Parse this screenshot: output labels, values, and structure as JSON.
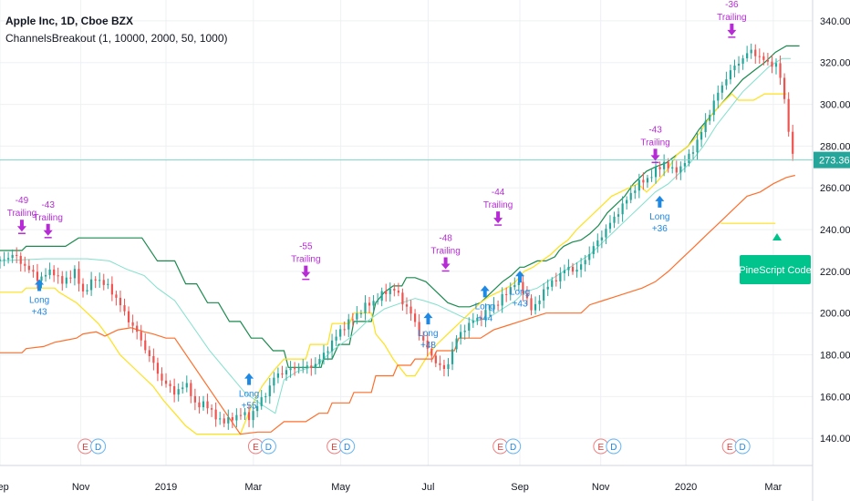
{
  "header": {
    "symbol": "Apple Inc, 1D, Cboe BZX",
    "indicator": "ChannelsBreakout (1, 10000, 2000, 50, 1000)"
  },
  "colors": {
    "up": "#26a69a",
    "down": "#ef5350",
    "upper_channel": "#1b8a4f",
    "lower_channel": "#ffe11a",
    "trailing": "#ff6f2c",
    "mid": "#80e0cc",
    "signal_long": "#1e88e5",
    "signal_exit": "#b72bd6",
    "badge": "#00c48c",
    "price_line": "#7fd4c8"
  },
  "chart_data": {
    "type": "candlestick",
    "title": "Apple Inc, 1D, Cboe BZX",
    "x_ticks": [
      "Sep",
      "Nov",
      "2019",
      "Mar",
      "May",
      "Jul",
      "Sep",
      "Nov",
      "2020",
      "Mar"
    ],
    "y_ticks": [
      "140.00",
      "160.00",
      "180.00",
      "200.00",
      "220.00",
      "240.00",
      "260.00",
      "280.00",
      "300.00",
      "320.00",
      "340.00"
    ],
    "ylim": [
      127,
      350
    ],
    "last_price": "273.36",
    "grid": true,
    "events_label": [
      "E",
      "D"
    ],
    "series": [
      {
        "name": "Upper channel",
        "values": [
          [
            0,
            230
          ],
          [
            10,
            230
          ],
          [
            12,
            232
          ],
          [
            30,
            232
          ],
          [
            36,
            236
          ],
          [
            60,
            236
          ],
          [
            65,
            236
          ],
          [
            72,
            225
          ],
          [
            80,
            225
          ],
          [
            85,
            214
          ],
          [
            90,
            214
          ],
          [
            95,
            205
          ],
          [
            100,
            205
          ],
          [
            105,
            196
          ],
          [
            110,
            196
          ],
          [
            115,
            188
          ],
          [
            120,
            188
          ],
          [
            125,
            182
          ],
          [
            130,
            182
          ],
          [
            132,
            174
          ],
          [
            140,
            174
          ],
          [
            145,
            174
          ],
          [
            147,
            174
          ],
          [
            148,
            178
          ],
          [
            152,
            178
          ],
          [
            155,
            185
          ],
          [
            160,
            185
          ],
          [
            162,
            196
          ],
          [
            170,
            196
          ],
          [
            172,
            205
          ],
          [
            176,
            210
          ],
          [
            180,
            213
          ],
          [
            184,
            213
          ],
          [
            186,
            217
          ],
          [
            190,
            217
          ],
          [
            195,
            215
          ],
          [
            200,
            210
          ],
          [
            205,
            205
          ],
          [
            210,
            203
          ],
          [
            215,
            203
          ],
          [
            220,
            205
          ],
          [
            225,
            210
          ],
          [
            230,
            215
          ],
          [
            234,
            218
          ],
          [
            238,
            222
          ],
          [
            240,
            222
          ],
          [
            246,
            225
          ],
          [
            250,
            225
          ],
          [
            254,
            227
          ],
          [
            256,
            230
          ],
          [
            258,
            232
          ],
          [
            262,
            234
          ],
          [
            266,
            235
          ],
          [
            270,
            238
          ],
          [
            274,
            242
          ],
          [
            278,
            248
          ],
          [
            282,
            252
          ],
          [
            286,
            256
          ],
          [
            290,
            262
          ],
          [
            292,
            264
          ],
          [
            296,
            268
          ],
          [
            300,
            270
          ],
          [
            305,
            272
          ],
          [
            310,
            276
          ],
          [
            315,
            280
          ],
          [
            320,
            288
          ],
          [
            325,
            294
          ],
          [
            330,
            300
          ],
          [
            335,
            306
          ],
          [
            340,
            312
          ],
          [
            345,
            316
          ],
          [
            350,
            320
          ],
          [
            355,
            325
          ],
          [
            360,
            328
          ],
          [
            366,
            328
          ]
        ]
      },
      {
        "name": "Lower channel",
        "values": [
          [
            0,
            210
          ],
          [
            10,
            210
          ],
          [
            12,
            212
          ],
          [
            25,
            212
          ],
          [
            27,
            210
          ],
          [
            35,
            205
          ],
          [
            40,
            200
          ],
          [
            45,
            195
          ],
          [
            50,
            188
          ],
          [
            55,
            180
          ],
          [
            60,
            175
          ],
          [
            65,
            170
          ],
          [
            70,
            165
          ],
          [
            75,
            158
          ],
          [
            80,
            152
          ],
          [
            85,
            146
          ],
          [
            90,
            142
          ],
          [
            100,
            142
          ],
          [
            110,
            142
          ],
          [
            115,
            155
          ],
          [
            120,
            165
          ],
          [
            125,
            172
          ],
          [
            130,
            178
          ],
          [
            140,
            178
          ],
          [
            142,
            185
          ],
          [
            150,
            185
          ],
          [
            152,
            195
          ],
          [
            160,
            195
          ],
          [
            162,
            200
          ],
          [
            170,
            200
          ],
          [
            172,
            190
          ],
          [
            176,
            185
          ],
          [
            180,
            178
          ],
          [
            186,
            170
          ],
          [
            190,
            170
          ],
          [
            196,
            180
          ],
          [
            200,
            185
          ],
          [
            205,
            190
          ],
          [
            210,
            195
          ],
          [
            215,
            200
          ],
          [
            220,
            205
          ],
          [
            224,
            208
          ],
          [
            228,
            210
          ],
          [
            232,
            212
          ],
          [
            236,
            215
          ],
          [
            240,
            220
          ],
          [
            244,
            222
          ],
          [
            248,
            225
          ],
          [
            252,
            228
          ],
          [
            256,
            232
          ],
          [
            260,
            235
          ],
          [
            264,
            240
          ],
          [
            268,
            244
          ],
          [
            272,
            248
          ],
          [
            276,
            252
          ],
          [
            280,
            256
          ],
          [
            284,
            258
          ],
          [
            288,
            260
          ],
          [
            292,
            262
          ],
          [
            296,
            258
          ],
          [
            300,
            262
          ],
          [
            305,
            268
          ],
          [
            310,
            276
          ],
          [
            315,
            280
          ],
          [
            320,
            286
          ],
          [
            325,
            294
          ],
          [
            330,
            300
          ],
          [
            335,
            305
          ],
          [
            338,
            302
          ],
          [
            345,
            302
          ],
          [
            350,
            305
          ],
          [
            360,
            305
          ]
        ]
      },
      {
        "name": "Trailing stop",
        "values": [
          [
            0,
            181
          ],
          [
            10,
            181
          ],
          [
            12,
            183
          ],
          [
            20,
            184
          ],
          [
            25,
            186
          ],
          [
            30,
            187
          ],
          [
            35,
            188
          ],
          [
            38,
            190
          ],
          [
            44,
            191
          ],
          [
            48,
            189
          ],
          [
            54,
            192
          ],
          [
            60,
            193
          ],
          [
            66,
            191
          ],
          [
            70,
            190
          ],
          [
            76,
            188
          ],
          [
            80,
            188
          ],
          [
            110,
            142
          ],
          [
            118,
            143
          ],
          [
            124,
            143
          ],
          [
            130,
            148
          ],
          [
            140,
            148
          ],
          [
            146,
            152
          ],
          [
            150,
            152
          ],
          [
            152,
            157
          ],
          [
            160,
            157
          ],
          [
            162,
            162
          ],
          [
            170,
            162
          ],
          [
            172,
            170
          ],
          [
            180,
            170
          ],
          [
            182,
            175
          ],
          [
            188,
            175
          ],
          [
            190,
            178
          ],
          [
            198,
            178
          ],
          [
            200,
            182
          ],
          [
            208,
            182
          ],
          [
            210,
            188
          ],
          [
            220,
            188
          ],
          [
            226,
            192
          ],
          [
            232,
            194
          ],
          [
            238,
            196
          ],
          [
            244,
            198
          ],
          [
            250,
            200
          ],
          [
            256,
            200
          ],
          [
            262,
            200
          ],
          [
            266,
            200
          ],
          [
            270,
            204
          ],
          [
            276,
            206
          ],
          [
            282,
            208
          ],
          [
            288,
            210
          ],
          [
            294,
            212
          ],
          [
            300,
            215
          ],
          [
            306,
            220
          ],
          [
            312,
            226
          ],
          [
            318,
            232
          ],
          [
            324,
            238
          ],
          [
            330,
            244
          ],
          [
            336,
            250
          ],
          [
            342,
            256
          ],
          [
            348,
            258
          ],
          [
            354,
            262
          ],
          [
            360,
            265
          ],
          [
            364,
            266
          ]
        ]
      },
      {
        "name": "Mid",
        "values": [
          [
            0,
            225
          ],
          [
            20,
            226
          ],
          [
            30,
            226
          ],
          [
            40,
            226
          ],
          [
            50,
            225
          ],
          [
            58,
            221
          ],
          [
            66,
            218
          ],
          [
            72,
            212
          ],
          [
            80,
            206
          ],
          [
            88,
            194
          ],
          [
            96,
            182
          ],
          [
            104,
            172
          ],
          [
            112,
            162
          ],
          [
            120,
            156
          ],
          [
            126,
            152
          ],
          [
            130,
            168
          ],
          [
            136,
            172
          ],
          [
            145,
            175
          ],
          [
            152,
            182
          ],
          [
            160,
            188
          ],
          [
            168,
            196
          ],
          [
            176,
            202
          ],
          [
            184,
            205
          ],
          [
            190,
            207
          ],
          [
            194,
            206
          ],
          [
            200,
            204
          ],
          [
            206,
            201
          ],
          [
            212,
            198
          ],
          [
            218,
            196
          ],
          [
            224,
            198
          ],
          [
            230,
            202
          ],
          [
            236,
            206
          ],
          [
            240,
            210
          ],
          [
            246,
            212
          ],
          [
            252,
            216
          ],
          [
            258,
            220
          ],
          [
            264,
            224
          ],
          [
            270,
            228
          ],
          [
            276,
            234
          ],
          [
            282,
            240
          ],
          [
            288,
            246
          ],
          [
            294,
            252
          ],
          [
            300,
            258
          ],
          [
            306,
            262
          ],
          [
            310,
            266
          ],
          [
            316,
            272
          ],
          [
            322,
            280
          ],
          [
            328,
            290
          ],
          [
            334,
            298
          ],
          [
            340,
            306
          ],
          [
            346,
            312
          ],
          [
            352,
            318
          ],
          [
            358,
            322
          ],
          [
            362,
            322
          ]
        ]
      }
    ]
  },
  "signals": [
    {
      "label": "Trailing",
      "value": "-49",
      "kind": "exit"
    },
    {
      "label": "Trailing",
      "value": "-43",
      "kind": "exit"
    },
    {
      "label": "Long",
      "value": "+43",
      "kind": "entry"
    },
    {
      "label": "Trailing",
      "value": "-55",
      "kind": "exit"
    },
    {
      "label": "Long",
      "value": "+55",
      "kind": "entry"
    },
    {
      "label": "Trailing",
      "value": "-48",
      "kind": "exit"
    },
    {
      "label": "Long",
      "value": "+48",
      "kind": "entry"
    },
    {
      "label": "Long",
      "value": "+44",
      "kind": "entry"
    },
    {
      "label": "Trailing",
      "value": "-44",
      "kind": "exit"
    },
    {
      "label": "Long",
      "value": "+43",
      "kind": "entry"
    },
    {
      "label": "Trailing",
      "value": "-43",
      "kind": "exit"
    },
    {
      "label": "Long",
      "value": "+36",
      "kind": "entry"
    },
    {
      "label": "Trailing",
      "value": "-36",
      "kind": "exit"
    }
  ],
  "badge": {
    "label": "PineScript Code"
  }
}
